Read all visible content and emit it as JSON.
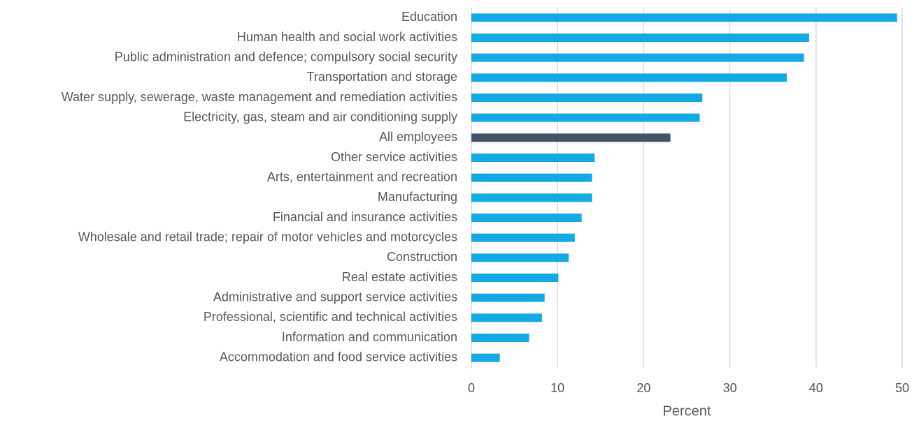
{
  "chart_data": {
    "type": "bar",
    "orientation": "horizontal",
    "categories": [
      "Education",
      "Human health and social work activities",
      "Public administration and defence; compulsory social security",
      "Transportation and storage",
      "Water supply, sewerage, waste management and remediation activities",
      "Electricity, gas, steam and air conditioning supply",
      "All employees",
      "Other service activities",
      "Arts, entertainment and recreation",
      "Manufacturing",
      "Financial and insurance activities",
      "Wholesale and retail trade; repair of motor vehicles and motorcycles",
      "Construction",
      "Real estate activities",
      "Administrative and support service activities",
      "Professional, scientific and technical activities",
      "Information and communication",
      "Accommodation and food service activities"
    ],
    "values": [
      49.4,
      39.2,
      38.6,
      36.6,
      26.8,
      26.5,
      23.1,
      14.3,
      14.0,
      14.0,
      12.8,
      12.0,
      11.3,
      10.1,
      8.5,
      8.2,
      6.7,
      3.3
    ],
    "colors": [
      "#12a9e5",
      "#12a9e5",
      "#12a9e5",
      "#12a9e5",
      "#12a9e5",
      "#12a9e5",
      "#44546a",
      "#12a9e5",
      "#12a9e5",
      "#12a9e5",
      "#12a9e5",
      "#12a9e5",
      "#12a9e5",
      "#12a9e5",
      "#12a9e5",
      "#12a9e5",
      "#12a9e5",
      "#12a9e5"
    ],
    "xlabel": "Percent",
    "xlim": [
      0,
      50
    ],
    "xticks": [
      0,
      10,
      20,
      30,
      40,
      50
    ],
    "grid": true
  }
}
